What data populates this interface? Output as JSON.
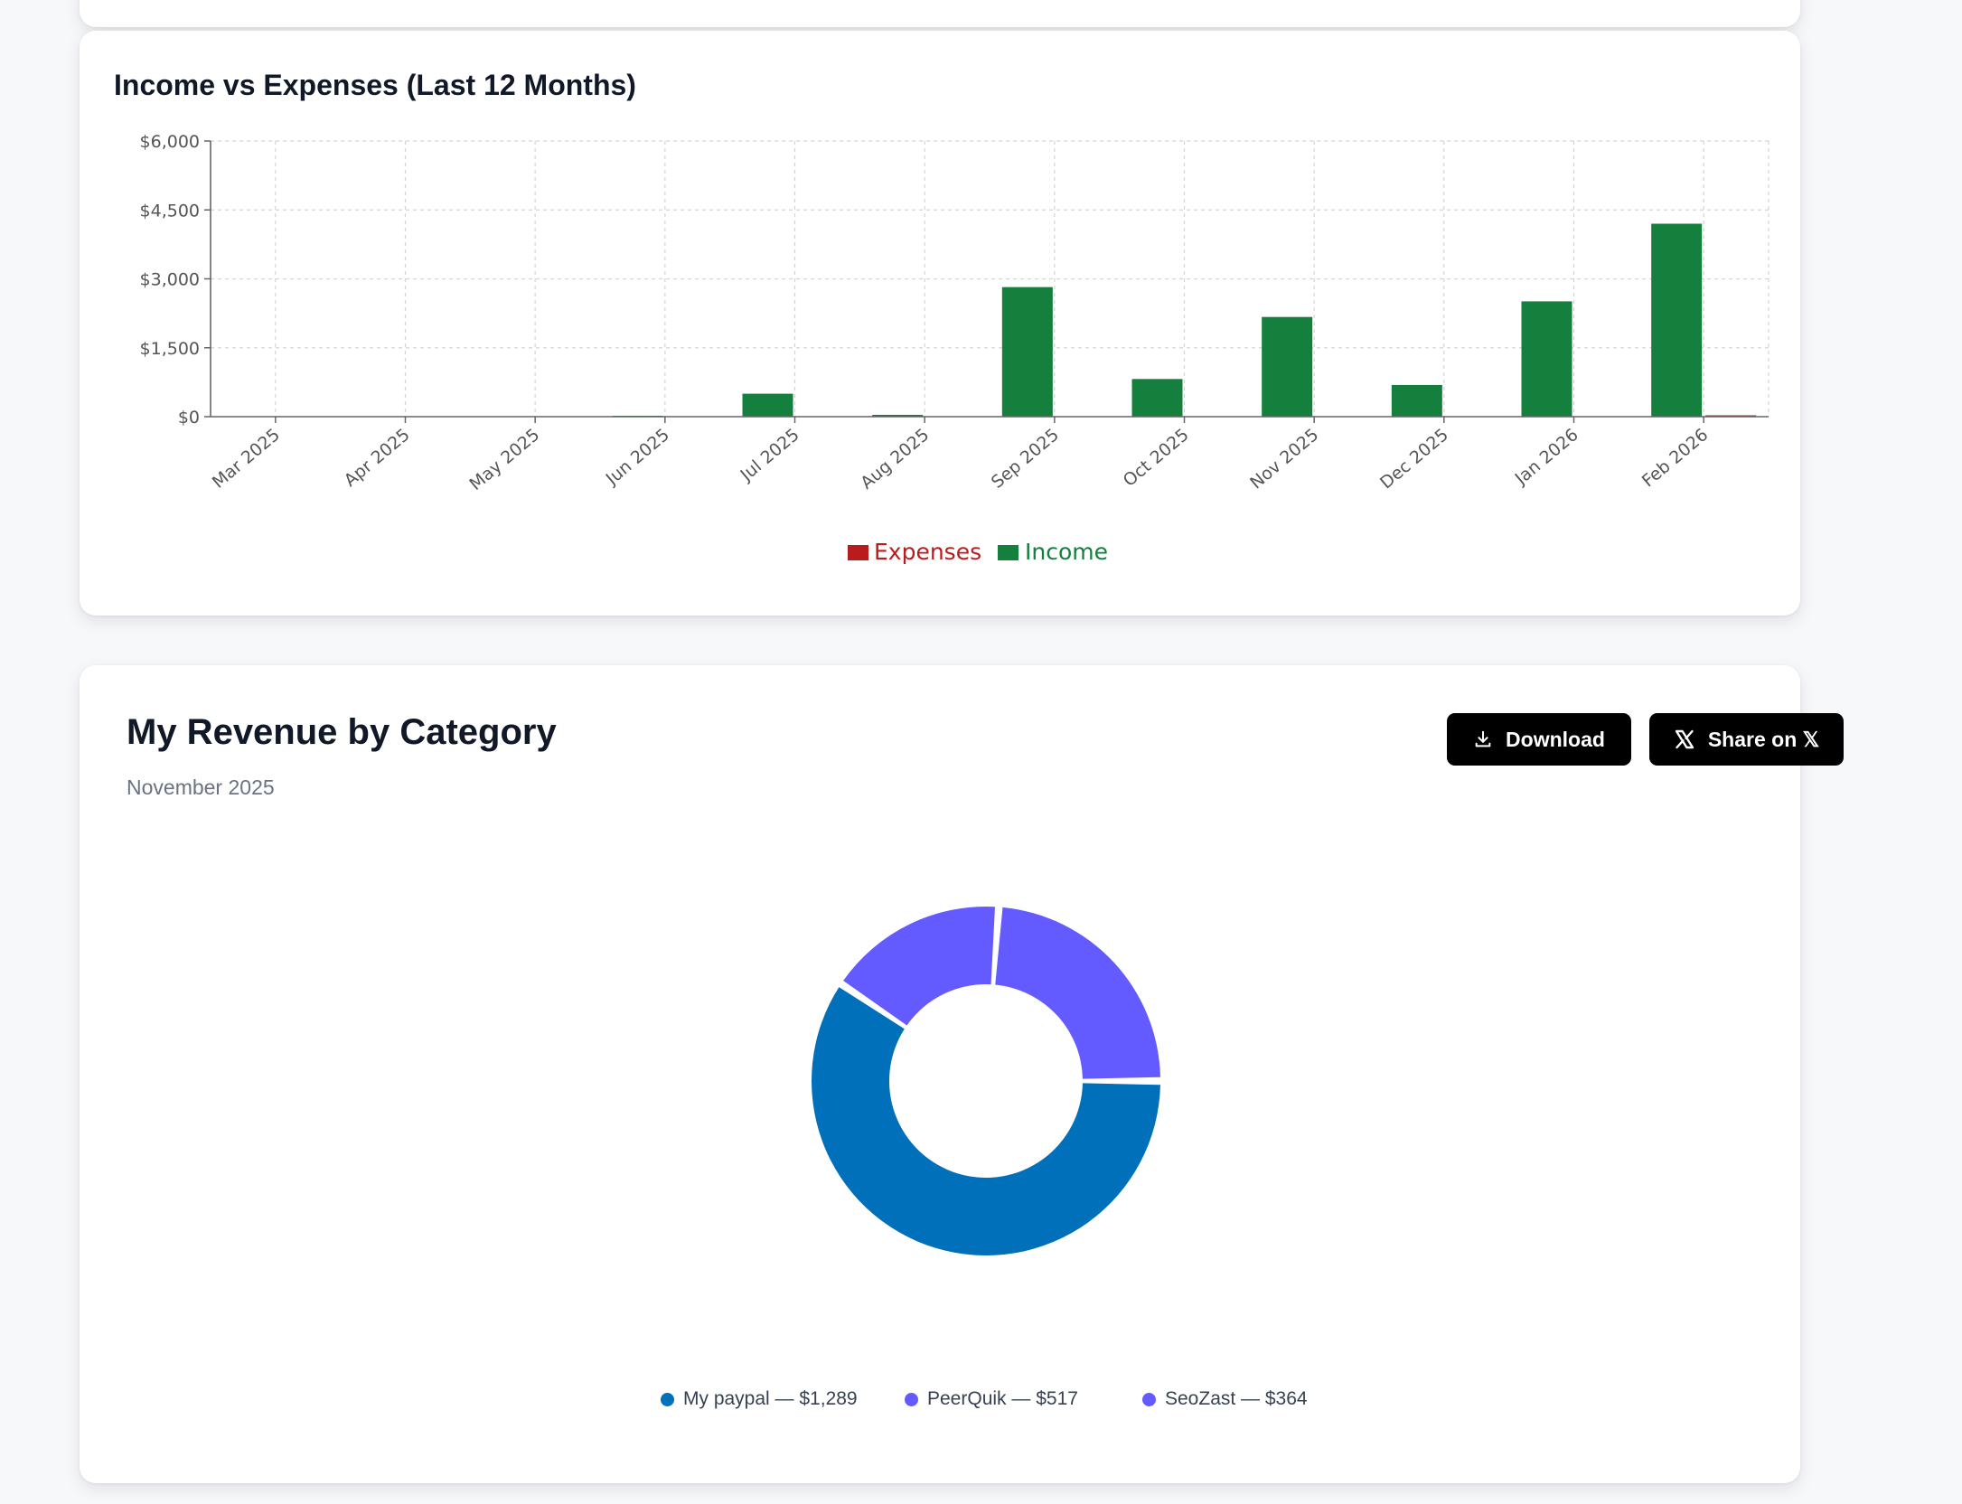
{
  "income_chart": {
    "title": "Income vs Expenses (Last 12 Months)",
    "legend": [
      {
        "label": "Expenses",
        "color": "#b91c1c"
      },
      {
        "label": "Income",
        "color": "#15803d"
      }
    ]
  },
  "revenue_card": {
    "title": "My Revenue by Category",
    "subtitle": "November 2025",
    "download_label": "Download",
    "share_label": "Share on 𝕏",
    "legend": [
      {
        "label": "My paypal — $1,289",
        "color": "#0070ba"
      },
      {
        "label": "PeerQuik — $517",
        "color": "#635bff"
      },
      {
        "label": "SeoZast — $364",
        "color": "#635bff"
      }
    ]
  },
  "chart_data": [
    {
      "type": "bar",
      "title": "Income vs Expenses (Last 12 Months)",
      "categories": [
        "Mar 2025",
        "Apr 2025",
        "May 2025",
        "Jun 2025",
        "Jul 2025",
        "Aug 2025",
        "Sep 2025",
        "Oct 2025",
        "Nov 2025",
        "Dec 2025",
        "Jan 2026",
        "Feb 2026"
      ],
      "series": [
        {
          "name": "Income",
          "color": "#15803d",
          "values": [
            0,
            0,
            0,
            20,
            500,
            40,
            2820,
            820,
            2170,
            690,
            2510,
            4200
          ]
        },
        {
          "name": "Expenses",
          "color": "#b91c1c",
          "values": [
            0,
            0,
            0,
            0,
            0,
            0,
            0,
            0,
            0,
            0,
            0,
            30
          ]
        }
      ],
      "y_ticks": [
        "$0",
        "$1,500",
        "$3,000",
        "$4,500",
        "$6,000"
      ],
      "ylim": [
        0,
        6000
      ],
      "grid": true,
      "legend_position": "bottom-center"
    },
    {
      "type": "pie",
      "title": "My Revenue by Category",
      "subtitle": "November 2025",
      "slices": [
        {
          "label": "My paypal",
          "value": 1289,
          "color": "#0070ba"
        },
        {
          "label": "SeoZast",
          "value": 364,
          "color": "#635bff"
        },
        {
          "label": "PeerQuik",
          "value": 517,
          "color": "#635bff"
        }
      ],
      "donut": true,
      "legend_position": "bottom-center"
    }
  ]
}
